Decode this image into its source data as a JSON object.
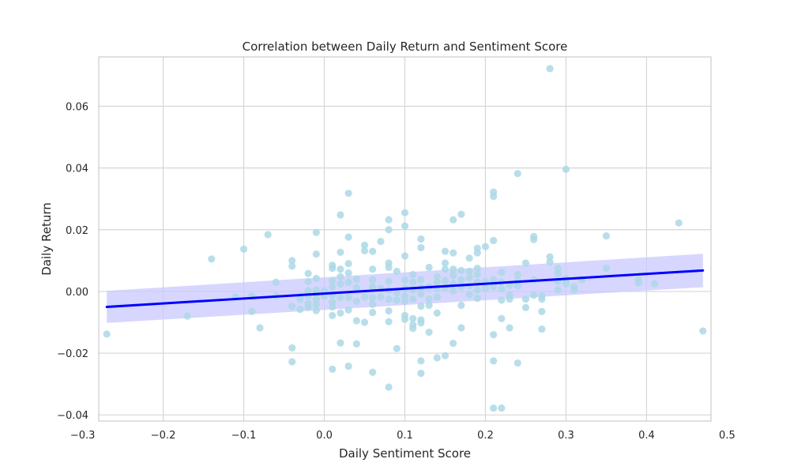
{
  "chart_data": {
    "type": "scatter",
    "title": "Correlation between Daily Return and Sentiment Score",
    "xlabel": "Daily Sentiment Score",
    "ylabel": "Daily Return",
    "xlim": [
      -0.28,
      0.48
    ],
    "ylim": [
      -0.042,
      0.076
    ],
    "xticks": [
      -0.3,
      -0.2,
      -0.1,
      0.0,
      0.1,
      0.2,
      0.3,
      0.4,
      0.5
    ],
    "xtick_labels": [
      "−0.3",
      "−0.2",
      "−0.1",
      "0.0",
      "0.1",
      "0.2",
      "0.3",
      "0.4",
      "0.5"
    ],
    "yticks": [
      -0.04,
      -0.02,
      0.0,
      0.02,
      0.04,
      0.06
    ],
    "ytick_labels": [
      "−0.04",
      "−0.02",
      "0.00",
      "0.02",
      "0.04",
      "0.06"
    ],
    "grid": true,
    "colors": {
      "points": "#add8e6",
      "regression_line": "#0000ff",
      "confidence_band": "#c8c8ff",
      "grid": "#d6d6d6",
      "spine": "#cccccc"
    },
    "regression": {
      "x": [
        -0.27,
        0.47
      ],
      "y": [
        -0.005,
        0.0068
      ],
      "ci_lower": [
        -0.0102,
        0.0014
      ],
      "ci_upper": [
        0.0002,
        0.0122
      ]
    },
    "points": [
      {
        "x": -0.27,
        "y": -0.0138
      },
      {
        "x": -0.17,
        "y": -0.008
      },
      {
        "x": -0.14,
        "y": 0.0105
      },
      {
        "x": -0.11,
        "y": -0.0018
      },
      {
        "x": -0.1,
        "y": 0.0137
      },
      {
        "x": -0.09,
        "y": -0.0015
      },
      {
        "x": -0.09,
        "y": -0.0065
      },
      {
        "x": -0.08,
        "y": -0.0118
      },
      {
        "x": -0.07,
        "y": 0.0184
      },
      {
        "x": -0.06,
        "y": 0.003
      },
      {
        "x": -0.06,
        "y": -0.0015
      },
      {
        "x": -0.04,
        "y": 0.01
      },
      {
        "x": -0.04,
        "y": 0.0082
      },
      {
        "x": -0.04,
        "y": -0.0048
      },
      {
        "x": -0.04,
        "y": -0.0183
      },
      {
        "x": -0.04,
        "y": -0.0228
      },
      {
        "x": -0.03,
        "y": -0.0015
      },
      {
        "x": -0.03,
        "y": -0.0025
      },
      {
        "x": -0.03,
        "y": -0.0058
      },
      {
        "x": -0.02,
        "y": 0.0058
      },
      {
        "x": -0.02,
        "y": 0.0032
      },
      {
        "x": -0.02,
        "y": 0.0002
      },
      {
        "x": -0.02,
        "y": -0.0015
      },
      {
        "x": -0.02,
        "y": -0.004
      },
      {
        "x": -0.02,
        "y": -0.0052
      },
      {
        "x": -0.01,
        "y": 0.0191
      },
      {
        "x": -0.01,
        "y": 0.0121
      },
      {
        "x": -0.01,
        "y": 0.0042
      },
      {
        "x": -0.01,
        "y": 0.0005
      },
      {
        "x": -0.01,
        "y": -0.0008
      },
      {
        "x": -0.01,
        "y": -0.0025
      },
      {
        "x": -0.01,
        "y": -0.0042
      },
      {
        "x": -0.01,
        "y": -0.0062
      },
      {
        "x": 0.0,
        "y": 0.0002
      },
      {
        "x": 0.0,
        "y": -0.0015
      },
      {
        "x": 0.01,
        "y": 0.0085
      },
      {
        "x": 0.01,
        "y": 0.0075
      },
      {
        "x": 0.01,
        "y": 0.0035
      },
      {
        "x": 0.01,
        "y": 0.0015
      },
      {
        "x": 0.01,
        "y": -0.0012
      },
      {
        "x": 0.01,
        "y": -0.0035
      },
      {
        "x": 0.01,
        "y": -0.005
      },
      {
        "x": 0.01,
        "y": -0.0078
      },
      {
        "x": 0.01,
        "y": -0.0252
      },
      {
        "x": 0.02,
        "y": 0.0248
      },
      {
        "x": 0.02,
        "y": 0.0127
      },
      {
        "x": 0.02,
        "y": 0.0072
      },
      {
        "x": 0.02,
        "y": 0.0048
      },
      {
        "x": 0.02,
        "y": 0.0025
      },
      {
        "x": 0.02,
        "y": -0.002
      },
      {
        "x": 0.02,
        "y": -0.007
      },
      {
        "x": 0.02,
        "y": -0.0167
      },
      {
        "x": 0.03,
        "y": 0.0318
      },
      {
        "x": 0.03,
        "y": 0.0176
      },
      {
        "x": 0.03,
        "y": 0.009
      },
      {
        "x": 0.03,
        "y": 0.006
      },
      {
        "x": 0.03,
        "y": 0.003
      },
      {
        "x": 0.03,
        "y": -0.002
      },
      {
        "x": 0.03,
        "y": -0.006
      },
      {
        "x": 0.03,
        "y": -0.0242
      },
      {
        "x": 0.04,
        "y": 0.004
      },
      {
        "x": 0.04,
        "y": 0.0012
      },
      {
        "x": 0.04,
        "y": -0.0032
      },
      {
        "x": 0.04,
        "y": -0.0095
      },
      {
        "x": 0.04,
        "y": -0.017
      },
      {
        "x": 0.05,
        "y": 0.015
      },
      {
        "x": 0.05,
        "y": 0.0132
      },
      {
        "x": 0.05,
        "y": -0.0018
      },
      {
        "x": 0.05,
        "y": -0.01
      },
      {
        "x": 0.06,
        "y": 0.013
      },
      {
        "x": 0.06,
        "y": 0.0072
      },
      {
        "x": 0.06,
        "y": 0.0038
      },
      {
        "x": 0.06,
        "y": 0.0015
      },
      {
        "x": 0.06,
        "y": -0.002
      },
      {
        "x": 0.06,
        "y": -0.0042
      },
      {
        "x": 0.06,
        "y": -0.0068
      },
      {
        "x": 0.06,
        "y": -0.0262
      },
      {
        "x": 0.07,
        "y": 0.0162
      },
      {
        "x": 0.07,
        "y": 0.001
      },
      {
        "x": 0.07,
        "y": -0.0018
      },
      {
        "x": 0.08,
        "y": 0.0232
      },
      {
        "x": 0.08,
        "y": 0.02
      },
      {
        "x": 0.08,
        "y": 0.0092
      },
      {
        "x": 0.08,
        "y": 0.0078
      },
      {
        "x": 0.08,
        "y": 0.0033
      },
      {
        "x": 0.08,
        "y": 0.0005
      },
      {
        "x": 0.08,
        "y": -0.0025
      },
      {
        "x": 0.08,
        "y": -0.0063
      },
      {
        "x": 0.08,
        "y": -0.0098
      },
      {
        "x": 0.08,
        "y": -0.031
      },
      {
        "x": 0.09,
        "y": 0.0065
      },
      {
        "x": 0.09,
        "y": -0.0005
      },
      {
        "x": 0.09,
        "y": -0.0028
      },
      {
        "x": 0.09,
        "y": -0.0185
      },
      {
        "x": 0.1,
        "y": 0.0255
      },
      {
        "x": 0.1,
        "y": 0.0212
      },
      {
        "x": 0.1,
        "y": 0.0115
      },
      {
        "x": 0.1,
        "y": 0.0038
      },
      {
        "x": 0.1,
        "y": 0.001
      },
      {
        "x": 0.1,
        "y": -0.0015
      },
      {
        "x": 0.1,
        "y": -0.0032
      },
      {
        "x": 0.1,
        "y": -0.0078
      },
      {
        "x": 0.1,
        "y": -0.009
      },
      {
        "x": 0.11,
        "y": 0.0055
      },
      {
        "x": 0.11,
        "y": 0.003
      },
      {
        "x": 0.11,
        "y": 0.0005
      },
      {
        "x": 0.11,
        "y": -0.0025
      },
      {
        "x": 0.11,
        "y": -0.0088
      },
      {
        "x": 0.11,
        "y": -0.0108
      },
      {
        "x": 0.11,
        "y": -0.012
      },
      {
        "x": 0.12,
        "y": 0.017
      },
      {
        "x": 0.12,
        "y": 0.0142
      },
      {
        "x": 0.12,
        "y": 0.0038
      },
      {
        "x": 0.12,
        "y": 0.0012
      },
      {
        "x": 0.12,
        "y": -0.0008
      },
      {
        "x": 0.12,
        "y": -0.0048
      },
      {
        "x": 0.12,
        "y": -0.0092
      },
      {
        "x": 0.12,
        "y": -0.0102
      },
      {
        "x": 0.12,
        "y": -0.0225
      },
      {
        "x": 0.12,
        "y": -0.0265
      },
      {
        "x": 0.13,
        "y": 0.0078
      },
      {
        "x": 0.13,
        "y": 0.0015
      },
      {
        "x": 0.13,
        "y": -0.0025
      },
      {
        "x": 0.13,
        "y": -0.0045
      },
      {
        "x": 0.13,
        "y": -0.0132
      },
      {
        "x": 0.14,
        "y": 0.0048
      },
      {
        "x": 0.14,
        "y": 0.003
      },
      {
        "x": 0.14,
        "y": 0.0008
      },
      {
        "x": 0.14,
        "y": -0.0018
      },
      {
        "x": 0.14,
        "y": -0.007
      },
      {
        "x": 0.14,
        "y": -0.0215
      },
      {
        "x": 0.15,
        "y": 0.013
      },
      {
        "x": 0.15,
        "y": 0.0092
      },
      {
        "x": 0.15,
        "y": 0.0072
      },
      {
        "x": 0.15,
        "y": 0.0035
      },
      {
        "x": 0.15,
        "y": 0.0012
      },
      {
        "x": 0.15,
        "y": -0.0208
      },
      {
        "x": 0.16,
        "y": 0.0232
      },
      {
        "x": 0.16,
        "y": 0.0125
      },
      {
        "x": 0.16,
        "y": 0.0072
      },
      {
        "x": 0.16,
        "y": 0.0052
      },
      {
        "x": 0.16,
        "y": 0.0025
      },
      {
        "x": 0.16,
        "y": 0.0002
      },
      {
        "x": 0.16,
        "y": -0.0168
      },
      {
        "x": 0.17,
        "y": 0.025
      },
      {
        "x": 0.17,
        "y": 0.0068
      },
      {
        "x": 0.17,
        "y": 0.0038
      },
      {
        "x": 0.17,
        "y": 0.0015
      },
      {
        "x": 0.17,
        "y": -0.0045
      },
      {
        "x": 0.17,
        "y": -0.0118
      },
      {
        "x": 0.18,
        "y": 0.0108
      },
      {
        "x": 0.18,
        "y": 0.0065
      },
      {
        "x": 0.18,
        "y": 0.0045
      },
      {
        "x": 0.18,
        "y": 0.0018
      },
      {
        "x": 0.18,
        "y": -0.001
      },
      {
        "x": 0.19,
        "y": 0.014
      },
      {
        "x": 0.19,
        "y": 0.0125
      },
      {
        "x": 0.19,
        "y": 0.0075
      },
      {
        "x": 0.19,
        "y": 0.0055
      },
      {
        "x": 0.19,
        "y": 0.003
      },
      {
        "x": 0.19,
        "y": 0.0005
      },
      {
        "x": 0.19,
        "y": -0.0022
      },
      {
        "x": 0.2,
        "y": 0.0145
      },
      {
        "x": 0.2,
        "y": 0.0032
      },
      {
        "x": 0.2,
        "y": 0.001
      },
      {
        "x": 0.21,
        "y": 0.0322
      },
      {
        "x": 0.21,
        "y": 0.0308
      },
      {
        "x": 0.21,
        "y": 0.0165
      },
      {
        "x": 0.21,
        "y": 0.0038
      },
      {
        "x": 0.21,
        "y": 0.0015
      },
      {
        "x": 0.21,
        "y": -0.014
      },
      {
        "x": 0.21,
        "y": -0.0225
      },
      {
        "x": 0.21,
        "y": -0.0378
      },
      {
        "x": 0.22,
        "y": 0.0062
      },
      {
        "x": 0.22,
        "y": 0.003
      },
      {
        "x": 0.22,
        "y": 0.0008
      },
      {
        "x": 0.22,
        "y": -0.0028
      },
      {
        "x": 0.22,
        "y": -0.0088
      },
      {
        "x": 0.22,
        "y": -0.0378
      },
      {
        "x": 0.23,
        "y": 0.002
      },
      {
        "x": 0.23,
        "y": -0.0012
      },
      {
        "x": 0.23,
        "y": -0.0025
      },
      {
        "x": 0.23,
        "y": -0.0118
      },
      {
        "x": 0.24,
        "y": 0.0382
      },
      {
        "x": 0.24,
        "y": 0.0055
      },
      {
        "x": 0.24,
        "y": 0.0035
      },
      {
        "x": 0.24,
        "y": 0.0018
      },
      {
        "x": 0.24,
        "y": -0.0232
      },
      {
        "x": 0.25,
        "y": 0.0092
      },
      {
        "x": 0.25,
        "y": -0.0025
      },
      {
        "x": 0.25,
        "y": -0.0052
      },
      {
        "x": 0.26,
        "y": 0.0178
      },
      {
        "x": 0.26,
        "y": 0.0168
      },
      {
        "x": 0.26,
        "y": 0.0038
      },
      {
        "x": 0.26,
        "y": -0.0012
      },
      {
        "x": 0.27,
        "y": -0.0015
      },
      {
        "x": 0.27,
        "y": -0.0025
      },
      {
        "x": 0.27,
        "y": -0.0065
      },
      {
        "x": 0.27,
        "y": -0.0122
      },
      {
        "x": 0.28,
        "y": 0.0722
      },
      {
        "x": 0.28,
        "y": 0.0112
      },
      {
        "x": 0.28,
        "y": 0.0095
      },
      {
        "x": 0.29,
        "y": 0.0075
      },
      {
        "x": 0.29,
        "y": 0.0058
      },
      {
        "x": 0.29,
        "y": 0.0032
      },
      {
        "x": 0.29,
        "y": 0.0005
      },
      {
        "x": 0.3,
        "y": 0.0396
      },
      {
        "x": 0.3,
        "y": 0.0042
      },
      {
        "x": 0.3,
        "y": 0.0025
      },
      {
        "x": 0.31,
        "y": 0.0015
      },
      {
        "x": 0.31,
        "y": 0.0005
      },
      {
        "x": 0.32,
        "y": 0.0038
      },
      {
        "x": 0.35,
        "y": 0.018
      },
      {
        "x": 0.35,
        "y": 0.0075
      },
      {
        "x": 0.39,
        "y": 0.0038
      },
      {
        "x": 0.39,
        "y": 0.0028
      },
      {
        "x": 0.41,
        "y": 0.0025
      },
      {
        "x": 0.44,
        "y": 0.0222
      },
      {
        "x": 0.47,
        "y": -0.0128
      }
    ]
  }
}
